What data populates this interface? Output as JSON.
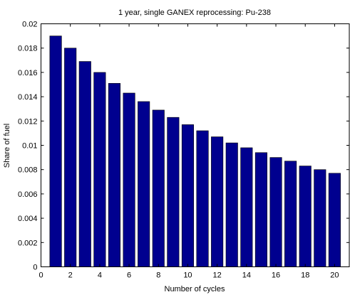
{
  "chart_data": {
    "type": "bar",
    "title": "1 year, single GANEX reprocessing: Pu-238",
    "xlabel": "Number of cycles",
    "ylabel": "Share of fuel",
    "x": [
      1,
      2,
      3,
      4,
      5,
      6,
      7,
      8,
      9,
      10,
      11,
      12,
      13,
      14,
      15,
      16,
      17,
      18,
      19,
      20
    ],
    "values": [
      0.019,
      0.018,
      0.0169,
      0.016,
      0.0151,
      0.0143,
      0.0136,
      0.0129,
      0.0123,
      0.0117,
      0.0112,
      0.0107,
      0.0102,
      0.0098,
      0.0094,
      0.009,
      0.0087,
      0.0083,
      0.008,
      0.0077
    ],
    "xlim": [
      0,
      21
    ],
    "ylim": [
      0,
      0.02
    ],
    "xticks": [
      0,
      2,
      4,
      6,
      8,
      10,
      12,
      14,
      16,
      18,
      20
    ],
    "xtick_labels": [
      "0",
      "2",
      "4",
      "6",
      "8",
      "10",
      "12",
      "14",
      "16",
      "18",
      "20"
    ],
    "yticks": [
      0,
      0.002,
      0.004,
      0.006,
      0.008,
      0.01,
      0.012,
      0.014,
      0.016,
      0.018,
      0.02
    ],
    "ytick_labels": [
      "0",
      "0.002",
      "0.004",
      "0.006",
      "0.008",
      "0.01",
      "0.012",
      "0.014",
      "0.016",
      "0.018",
      "0.02"
    ],
    "bar_color": "#00008f",
    "bar_edge_color": "#000000",
    "grid": false,
    "legend": "none"
  }
}
